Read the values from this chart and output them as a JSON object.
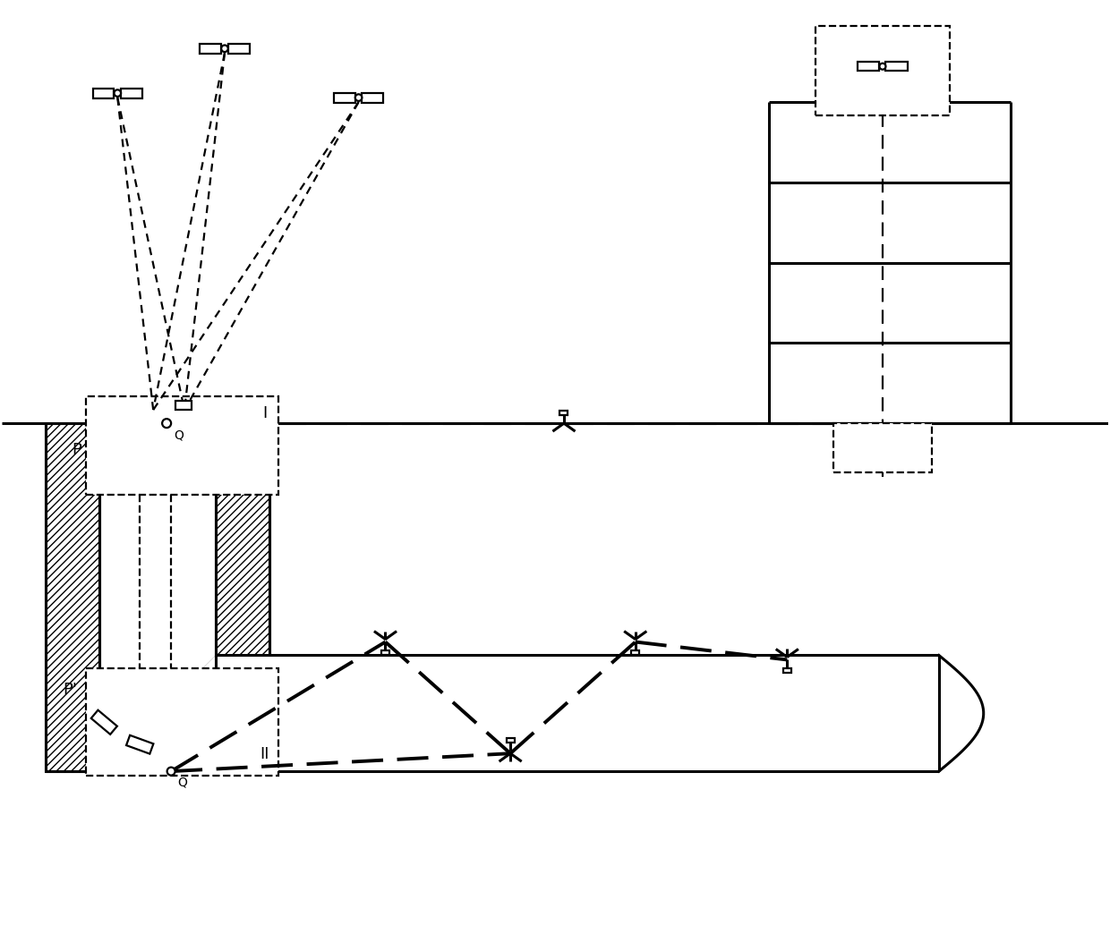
{
  "bg_color": "#ffffff",
  "line_color": "#000000",
  "figsize": [
    12.4,
    10.63
  ],
  "dpi": 100,
  "xlim": [
    0,
    124
  ],
  "ylim": [
    0,
    106.3
  ],
  "ground_y": 59.0,
  "lw_main": 2.2,
  "lw_thin": 1.6,
  "lw_hatch": 0.8
}
